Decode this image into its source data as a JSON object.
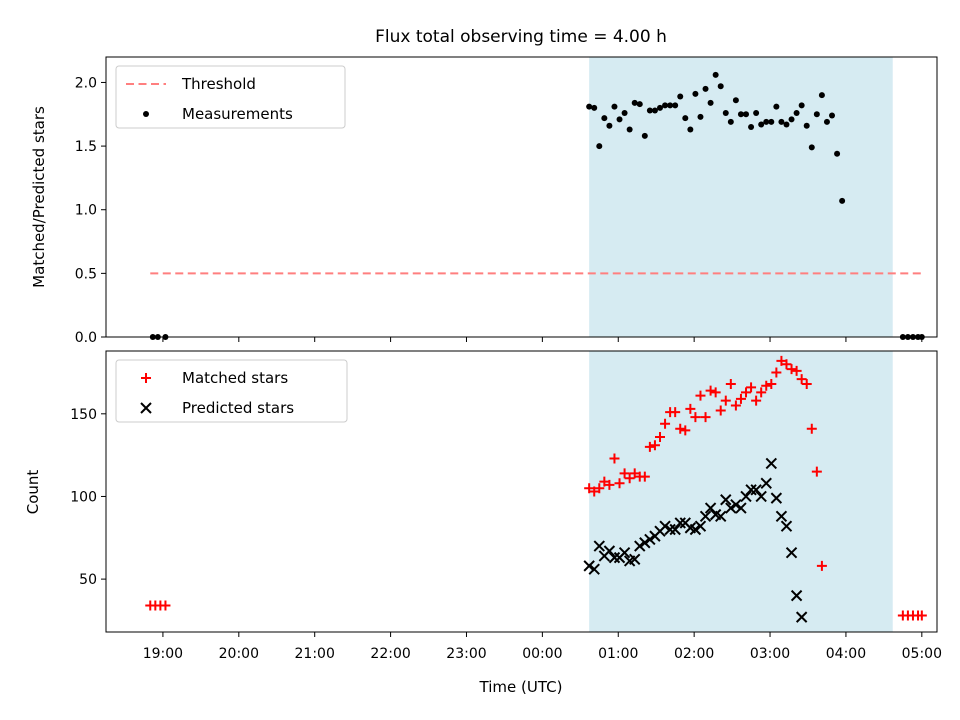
{
  "figure": {
    "title": "Flux total observing time = 4.00 h",
    "xlabel": "Time (UTC)",
    "x_ticks": [
      "19:00",
      "20:00",
      "21:00",
      "22:00",
      "23:00",
      "00:00",
      "01:00",
      "02:00",
      "03:00",
      "04:00",
      "05:00"
    ],
    "shaded_interval": {
      "start": "00:37",
      "end": "04:37",
      "color": "#add8e6"
    }
  },
  "chart_data": [
    {
      "type": "scatter",
      "ylabel": "Matched/Predicted stars",
      "ylim": [
        0,
        2.2
      ],
      "y_ticks": [
        0.0,
        0.5,
        1.0,
        1.5,
        2.0
      ],
      "y_tick_labels": [
        "0.0",
        "0.5",
        "1.0",
        "1.5",
        "2.0"
      ],
      "legend": {
        "position": "upper left",
        "entries": [
          "Threshold",
          "Measurements"
        ]
      },
      "threshold": {
        "name": "Threshold",
        "value": 0.5,
        "x_start": "18:50",
        "x_end": "05:00",
        "color": "#ff7f7f",
        "style": "dashed"
      },
      "series": [
        {
          "name": "Measurements",
          "color": "#000000",
          "marker": "dot",
          "points": [
            [
              "18:52",
              0.0
            ],
            [
              "18:56",
              0.0
            ],
            [
              "19:02",
              0.0
            ],
            [
              "00:37",
              1.81
            ],
            [
              "00:41",
              1.8
            ],
            [
              "00:45",
              1.5
            ],
            [
              "00:49",
              1.72
            ],
            [
              "00:53",
              1.66
            ],
            [
              "00:57",
              1.81
            ],
            [
              "01:01",
              1.71
            ],
            [
              "01:05",
              1.76
            ],
            [
              "01:09",
              1.63
            ],
            [
              "01:13",
              1.84
            ],
            [
              "01:17",
              1.83
            ],
            [
              "01:21",
              1.58
            ],
            [
              "01:25",
              1.78
            ],
            [
              "01:29",
              1.78
            ],
            [
              "01:33",
              1.8
            ],
            [
              "01:37",
              1.82
            ],
            [
              "01:41",
              1.82
            ],
            [
              "01:45",
              1.82
            ],
            [
              "01:49",
              1.89
            ],
            [
              "01:53",
              1.72
            ],
            [
              "01:57",
              1.63
            ],
            [
              "02:01",
              1.91
            ],
            [
              "02:05",
              1.73
            ],
            [
              "02:09",
              1.95
            ],
            [
              "02:13",
              1.84
            ],
            [
              "02:17",
              2.06
            ],
            [
              "02:21",
              1.97
            ],
            [
              "02:25",
              1.76
            ],
            [
              "02:29",
              1.69
            ],
            [
              "02:33",
              1.86
            ],
            [
              "02:37",
              1.75
            ],
            [
              "02:41",
              1.75
            ],
            [
              "02:45",
              1.65
            ],
            [
              "02:49",
              1.76
            ],
            [
              "02:53",
              1.67
            ],
            [
              "02:57",
              1.69
            ],
            [
              "03:01",
              1.69
            ],
            [
              "03:05",
              1.81
            ],
            [
              "03:09",
              1.69
            ],
            [
              "03:13",
              1.67
            ],
            [
              "03:17",
              1.71
            ],
            [
              "03:21",
              1.76
            ],
            [
              "03:25",
              1.82
            ],
            [
              "03:29",
              1.66
            ],
            [
              "03:33",
              1.49
            ],
            [
              "03:37",
              1.75
            ],
            [
              "03:41",
              1.9
            ],
            [
              "03:45",
              1.69
            ],
            [
              "03:49",
              1.74
            ],
            [
              "03:53",
              1.44
            ],
            [
              "03:57",
              1.07
            ],
            [
              "04:45",
              0.0
            ],
            [
              "04:49",
              0.0
            ],
            [
              "04:53",
              0.0
            ],
            [
              "04:57",
              0.0
            ],
            [
              "05:00",
              0.0
            ]
          ]
        }
      ]
    },
    {
      "type": "scatter",
      "ylabel": "Count",
      "ylim": [
        18,
        188
      ],
      "y_ticks": [
        50,
        100,
        150
      ],
      "y_tick_labels": [
        "50",
        "100",
        "150"
      ],
      "legend": {
        "position": "upper left",
        "entries": [
          "Matched stars",
          "Predicted stars"
        ]
      },
      "series": [
        {
          "name": "Matched stars",
          "color": "#ff0000",
          "marker": "plus",
          "points": [
            [
              "18:50",
              34
            ],
            [
              "18:54",
              34
            ],
            [
              "18:58",
              34
            ],
            [
              "19:02",
              34
            ],
            [
              "00:37",
              105
            ],
            [
              "00:41",
              103
            ],
            [
              "00:45",
              105
            ],
            [
              "00:49",
              109
            ],
            [
              "00:53",
              107
            ],
            [
              "00:57",
              123
            ],
            [
              "01:01",
              108
            ],
            [
              "01:05",
              114
            ],
            [
              "01:09",
              111
            ],
            [
              "01:13",
              114
            ],
            [
              "01:17",
              112
            ],
            [
              "01:21",
              112
            ],
            [
              "01:25",
              130
            ],
            [
              "01:29",
              131
            ],
            [
              "01:33",
              136
            ],
            [
              "01:37",
              144
            ],
            [
              "01:41",
              151
            ],
            [
              "01:45",
              151
            ],
            [
              "01:49",
              141
            ],
            [
              "01:53",
              140
            ],
            [
              "01:57",
              153
            ],
            [
              "02:01",
              148
            ],
            [
              "02:05",
              161
            ],
            [
              "02:09",
              148
            ],
            [
              "02:13",
              164
            ],
            [
              "02:17",
              163
            ],
            [
              "02:21",
              152
            ],
            [
              "02:25",
              158
            ],
            [
              "02:29",
              168
            ],
            [
              "02:33",
              155
            ],
            [
              "02:37",
              159
            ],
            [
              "02:41",
              163
            ],
            [
              "02:45",
              166
            ],
            [
              "02:49",
              158
            ],
            [
              "02:53",
              163
            ],
            [
              "02:57",
              167
            ],
            [
              "03:01",
              168
            ],
            [
              "03:05",
              175
            ],
            [
              "03:09",
              182
            ],
            [
              "03:13",
              180
            ],
            [
              "03:17",
              177
            ],
            [
              "03:21",
              176
            ],
            [
              "03:25",
              171
            ],
            [
              "03:29",
              168
            ],
            [
              "03:33",
              141
            ],
            [
              "03:37",
              115
            ],
            [
              "03:41",
              58
            ],
            [
              "04:45",
              28
            ],
            [
              "04:49",
              28
            ],
            [
              "04:53",
              28
            ],
            [
              "04:57",
              28
            ],
            [
              "05:00",
              28
            ]
          ]
        },
        {
          "name": "Predicted stars",
          "color": "#000000",
          "marker": "x",
          "points": [
            [
              "00:37",
              58
            ],
            [
              "00:41",
              56
            ],
            [
              "00:45",
              70
            ],
            [
              "00:49",
              64
            ],
            [
              "00:53",
              67
            ],
            [
              "00:57",
              63
            ],
            [
              "01:01",
              63
            ],
            [
              "01:05",
              66
            ],
            [
              "01:09",
              61
            ],
            [
              "01:13",
              62
            ],
            [
              "01:17",
              70
            ],
            [
              "01:21",
              72
            ],
            [
              "01:25",
              74
            ],
            [
              "01:29",
              76
            ],
            [
              "01:33",
              79
            ],
            [
              "01:37",
              82
            ],
            [
              "01:41",
              80
            ],
            [
              "01:45",
              80
            ],
            [
              "01:49",
              84
            ],
            [
              "01:53",
              84
            ],
            [
              "01:57",
              81
            ],
            [
              "02:01",
              80
            ],
            [
              "02:05",
              82
            ],
            [
              "02:09",
              88
            ],
            [
              "02:13",
              93
            ],
            [
              "02:17",
              89
            ],
            [
              "02:21",
              88
            ],
            [
              "02:25",
              98
            ],
            [
              "02:29",
              93
            ],
            [
              "02:33",
              95
            ],
            [
              "02:37",
              93
            ],
            [
              "02:41",
              100
            ],
            [
              "02:45",
              104
            ],
            [
              "02:49",
              104
            ],
            [
              "02:53",
              100
            ],
            [
              "02:57",
              108
            ],
            [
              "03:01",
              120
            ],
            [
              "03:05",
              99
            ],
            [
              "03:09",
              88
            ],
            [
              "03:13",
              82
            ],
            [
              "03:17",
              66
            ],
            [
              "03:21",
              40
            ],
            [
              "03:25",
              27
            ]
          ]
        }
      ]
    }
  ]
}
